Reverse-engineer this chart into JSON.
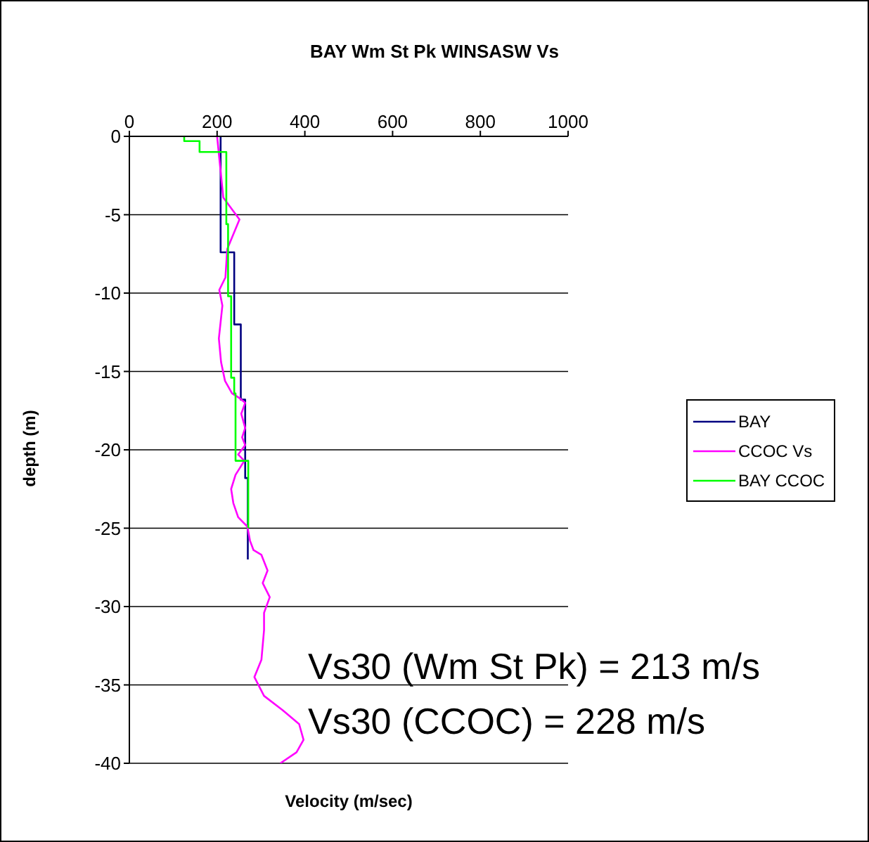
{
  "chart_data": {
    "type": "line",
    "title": "BAY Wm St Pk WINSASW Vs",
    "xlabel": "Velocity (m/sec)",
    "ylabel": "depth (m)",
    "xlim": [
      0,
      1000
    ],
    "xticks": [
      0,
      200,
      400,
      600,
      800,
      1000
    ],
    "ylim": [
      -40,
      0
    ],
    "yticks": [
      0,
      -5,
      -10,
      -15,
      -20,
      -25,
      -30,
      -35,
      -40
    ],
    "grid": "y",
    "legend": "right",
    "marker": "none",
    "line_style": "solid",
    "annotations": [
      "Vs30 (Wm St Pk) = 213 m/s",
      "Vs30 (CCOC) = 228 m/s"
    ],
    "series": [
      {
        "name": "BAY",
        "color": "#000080",
        "x": [
          208,
          208,
          239,
          239,
          254,
          254,
          264,
          264,
          270,
          270
        ],
        "values": [
          0,
          -7.4,
          -7.4,
          -12,
          -12,
          -16.8,
          -16.8,
          -21.8,
          -21.8,
          -27
        ]
      },
      {
        "name": "CCOC Vs",
        "color": "#ff00ff",
        "x": [
          200,
          214,
          251,
          223,
          219,
          205,
          212,
          204,
          209,
          218,
          234,
          251,
          264,
          255,
          264,
          257,
          264,
          248,
          262,
          242,
          232,
          237,
          248,
          269,
          275,
          283,
          301,
          315,
          304,
          320,
          307,
          307,
          301,
          285,
          307,
          349,
          387,
          397,
          381,
          344
        ],
        "values": [
          0,
          -3.9,
          -5.3,
          -7.2,
          -9.0,
          -9.8,
          -10.8,
          -12.9,
          -14.4,
          -15.6,
          -16.4,
          -16.7,
          -17,
          -17.7,
          -18.6,
          -19.2,
          -19.7,
          -20.3,
          -20.7,
          -21.6,
          -22.5,
          -23.4,
          -24.3,
          -24.9,
          -25.8,
          -26.4,
          -26.7,
          -27.7,
          -28.5,
          -29.4,
          -30.4,
          -31.5,
          -33.4,
          -34.5,
          -35.7,
          -36.6,
          -37.5,
          -38.5,
          -39.3,
          -40
        ]
      },
      {
        "name": "BAY CCOC",
        "color": "#00ff00",
        "x": [
          125,
          125,
          160,
          160,
          221,
          221,
          225,
          225,
          232,
          232,
          239,
          239,
          242,
          242,
          271,
          271
        ],
        "values": [
          0,
          -0.3,
          -0.3,
          -1,
          -1,
          -5.6,
          -5.6,
          -10.2,
          -10.2,
          -15.4,
          -15.4,
          -16.4,
          -16.4,
          -20.7,
          -20.7,
          -25
        ]
      }
    ]
  }
}
